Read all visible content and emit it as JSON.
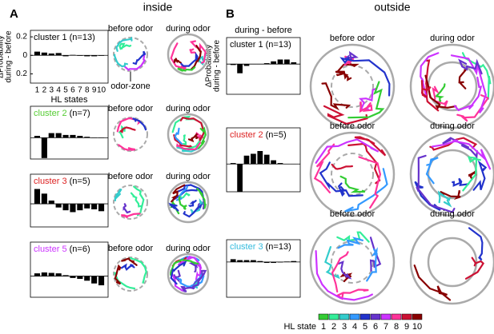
{
  "panels": {
    "a": "A",
    "b": "B",
    "inside": "inside",
    "outside": "outside"
  },
  "trajectory_labels": {
    "before": "before odor",
    "during": "during odor",
    "zone": "odor-zone"
  },
  "colorbar": {
    "label": "HL state",
    "states": [
      1,
      2,
      3,
      4,
      5,
      6,
      7,
      8,
      9,
      10
    ],
    "colors": [
      "#33cc33",
      "#33ee99",
      "#33cccc",
      "#3399ff",
      "#2233cc",
      "#6633cc",
      "#cc33ff",
      "#ff3399",
      "#cc1133",
      "#880000"
    ]
  },
  "chart_data": [
    {
      "type": "bar",
      "title": "cluster 1",
      "subtitle": "(n=13)",
      "title_color": "#000000",
      "color": "#000000",
      "categories": [
        "1",
        "2",
        "3",
        "4",
        "5",
        "6",
        "7",
        "8",
        "9",
        "10"
      ],
      "values": [
        0.04,
        0.03,
        0.02,
        0.025,
        -0.01,
        0.005,
        -0.005,
        -0.01,
        -0.01,
        -0.005
      ],
      "ylim": [
        -0.3,
        0.27
      ],
      "yticks": [
        0.2,
        0,
        {
          "value": -0.2,
          "label": "0.2"
        }
      ],
      "ylabel": [
        "ΔProbability",
        "during - before"
      ],
      "xlabel": "HL states"
    },
    {
      "type": "bar",
      "title": "cluster 2",
      "subtitle": "(n=7)",
      "title_color": "#55cc33",
      "color": "#000000",
      "values": [
        0.02,
        -0.22,
        0.05,
        0.05,
        0.03,
        0.03,
        0.02,
        0.01,
        0.0,
        0.0
      ],
      "ylim": [
        -0.23,
        0.34
      ]
    },
    {
      "type": "bar",
      "title": "cluster 3",
      "subtitle": "(n=5)",
      "title_color": "#dd2222",
      "color": "#000000",
      "values": [
        0.16,
        0.11,
        0.035,
        -0.04,
        -0.07,
        -0.09,
        -0.07,
        -0.05,
        -0.06,
        -0.08
      ],
      "ylim": [
        -0.25,
        0.32
      ]
    },
    {
      "type": "bar",
      "title": "cluster 5",
      "subtitle": "(n=6)",
      "title_color": "#cc33ff",
      "color": "#000000",
      "values": [
        0.03,
        0.04,
        0.035,
        0.03,
        0.01,
        -0.02,
        -0.03,
        -0.05,
        -0.08,
        -0.1
      ],
      "ylim": [
        -0.23,
        0.37
      ]
    },
    {
      "type": "bar",
      "title": "cluster 1",
      "subtitle": "(n=13)",
      "title_color": "#000000",
      "color": "#000000",
      "header": "during - before",
      "ylabel": [
        "ΔProbability",
        "during - before"
      ],
      "values": [
        -0.01,
        -0.1,
        -0.02,
        0.0,
        0.0,
        0.01,
        0.03,
        0.05,
        0.05,
        0.02
      ],
      "ylim": [
        -0.33,
        0.29
      ]
    },
    {
      "type": "bar",
      "title": "cluster 2",
      "subtitle": "(n=5)",
      "title_color": "#dd2222",
      "color": "#000000",
      "values": [
        0.01,
        -0.3,
        0.09,
        0.11,
        0.14,
        0.1,
        0.04,
        0.01,
        0.0,
        0.0
      ],
      "ylim": [
        -0.3,
        0.39
      ]
    },
    {
      "type": "bar",
      "title": "cluster 3",
      "subtitle": "(n=13)",
      "title_color": "#33bbdd",
      "color": "#000000",
      "values": [
        0.03,
        0.02,
        0.02,
        0.02,
        0.01,
        -0.01,
        -0.01,
        -0.005,
        0.005,
        0.01
      ],
      "ylim": [
        -0.38,
        0.24
      ]
    }
  ]
}
